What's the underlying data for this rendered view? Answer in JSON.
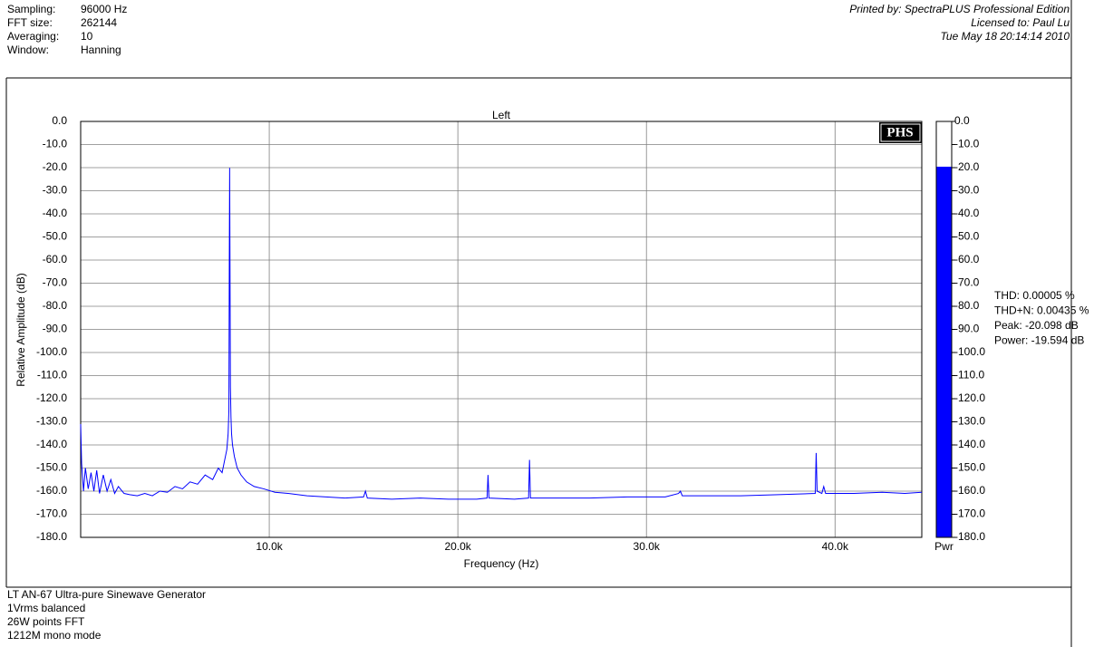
{
  "header": {
    "fields": [
      [
        "Sampling:",
        "96000 Hz"
      ],
      [
        "FFT size:",
        "262144"
      ],
      [
        "Averaging:",
        "10"
      ],
      [
        "Window:",
        "Hanning"
      ]
    ],
    "right": [
      "Printed by: SpectraPLUS Professional Edition",
      "Licensed to: Paul Lu",
      "Tue May 18 20:14:14 2010"
    ]
  },
  "chart_data": [
    {
      "type": "line",
      "title": "Left",
      "x_label": "Frequency (Hz)",
      "y_label": "Relative Amplitude (dB)",
      "logo": "PHS",
      "grid": true,
      "color": "#0000ff",
      "xlim": [
        0,
        44600
      ],
      "xticks": [
        {
          "value": 10000,
          "label": "10.0k"
        },
        {
          "value": 20000,
          "label": "20.0k"
        },
        {
          "value": 30000,
          "label": "30.0k"
        },
        {
          "value": 40000,
          "label": "40.0k"
        }
      ],
      "ylim": [
        -180,
        0
      ],
      "yticks": [
        {
          "value": 0,
          "label": "0.0"
        },
        {
          "value": -10,
          "label": "-10.0"
        },
        {
          "value": -20,
          "label": "-20.0"
        },
        {
          "value": -30,
          "label": "-30.0"
        },
        {
          "value": -40,
          "label": "-40.0"
        },
        {
          "value": -50,
          "label": "-50.0"
        },
        {
          "value": -60,
          "label": "-60.0"
        },
        {
          "value": -70,
          "label": "-70.0"
        },
        {
          "value": -80,
          "label": "-80.0"
        },
        {
          "value": -90,
          "label": "-90.0"
        },
        {
          "value": -100,
          "label": "-100.0"
        },
        {
          "value": -110,
          "label": "-110.0"
        },
        {
          "value": -120,
          "label": "-120.0"
        },
        {
          "value": -130,
          "label": "-130.0"
        },
        {
          "value": -140,
          "label": "-140.0"
        },
        {
          "value": -150,
          "label": "-150.0"
        },
        {
          "value": -160,
          "label": "-160.0"
        },
        {
          "value": -170,
          "label": "-170.0"
        },
        {
          "value": -180,
          "label": "-180.0"
        }
      ],
      "x": [
        0,
        50,
        150,
        250,
        400,
        550,
        700,
        850,
        1000,
        1200,
        1400,
        1600,
        1800,
        2000,
        2300,
        2600,
        3000,
        3400,
        3800,
        4200,
        4600,
        5000,
        5400,
        5800,
        6200,
        6600,
        7000,
        7300,
        7500,
        7650,
        7750,
        7820,
        7860,
        7880,
        7900,
        7920,
        7940,
        7970,
        8000,
        8050,
        8150,
        8300,
        8500,
        8800,
        9200,
        9700,
        10300,
        11000,
        12000,
        13000,
        14000,
        15000,
        15100,
        15200,
        16500,
        18000,
        19500,
        21000,
        21550,
        21600,
        21650,
        23000,
        23750,
        23800,
        23850,
        25000,
        27000,
        29000,
        31000,
        31700,
        31800,
        31900,
        33000,
        35000,
        37000,
        38950,
        39000,
        39050,
        39300,
        39400,
        39500,
        41000,
        42500,
        43700,
        44600
      ],
      "values": [
        -131,
        -148,
        -160,
        -150,
        -159,
        -152,
        -160,
        -151,
        -161,
        -153,
        -160,
        -155,
        -161,
        -158,
        -161,
        -161.5,
        -162,
        -161,
        -162,
        -160,
        -160.5,
        -158,
        -159,
        -156,
        -157,
        -153,
        -155,
        -150,
        -152,
        -146,
        -142,
        -135,
        -125,
        -65,
        -20.1,
        -68,
        -115,
        -128,
        -135,
        -140,
        -145,
        -150,
        -153,
        -156,
        -158,
        -159,
        -160.5,
        -161,
        -162,
        -162.5,
        -163,
        -162.5,
        -160,
        -163,
        -163.5,
        -163,
        -163.5,
        -163.5,
        -163,
        -153,
        -163,
        -163.5,
        -163,
        -146.5,
        -163,
        -163,
        -163,
        -162.5,
        -162.5,
        -161,
        -160,
        -162,
        -162,
        -162,
        -161.5,
        -161,
        -143.5,
        -160,
        -161,
        -158,
        -161,
        -161,
        -160.5,
        -161,
        -160.5
      ]
    },
    {
      "type": "bar",
      "categories": [
        "Pwr"
      ],
      "values": [
        -19.594
      ],
      "color": "#0000ff",
      "ylim": [
        -180,
        0
      ],
      "yticks": [
        {
          "value": 0,
          "label": "0.0"
        },
        {
          "value": -10,
          "label": "-10.0"
        },
        {
          "value": -20,
          "label": "-20.0"
        },
        {
          "value": -30,
          "label": "-30.0"
        },
        {
          "value": -40,
          "label": "-40.0"
        },
        {
          "value": -50,
          "label": "-50.0"
        },
        {
          "value": -60,
          "label": "-60.0"
        },
        {
          "value": -70,
          "label": "-70.0"
        },
        {
          "value": -80,
          "label": "-80.0"
        },
        {
          "value": -90,
          "label": "-90.0"
        },
        {
          "value": -100,
          "label": "-100.0"
        },
        {
          "value": -110,
          "label": "-110.0"
        },
        {
          "value": -120,
          "label": "-120.0"
        },
        {
          "value": -130,
          "label": "-130.0"
        },
        {
          "value": -140,
          "label": "-140.0"
        },
        {
          "value": -150,
          "label": "-150.0"
        },
        {
          "value": -160,
          "label": "-160.0"
        },
        {
          "value": -170,
          "label": "-170.0"
        },
        {
          "value": -180,
          "label": "-180.0"
        }
      ]
    }
  ],
  "stats": [
    "THD: 0.00005 %",
    "THD+N: 0.00435 %",
    "Peak: -20.098 dB",
    "Power: -19.594 dB"
  ],
  "footer": [
    "LT AN-67 Ultra-pure Sinewave Generator",
    "1Vrms balanced",
    "26W points FFT",
    "1212M mono mode"
  ]
}
